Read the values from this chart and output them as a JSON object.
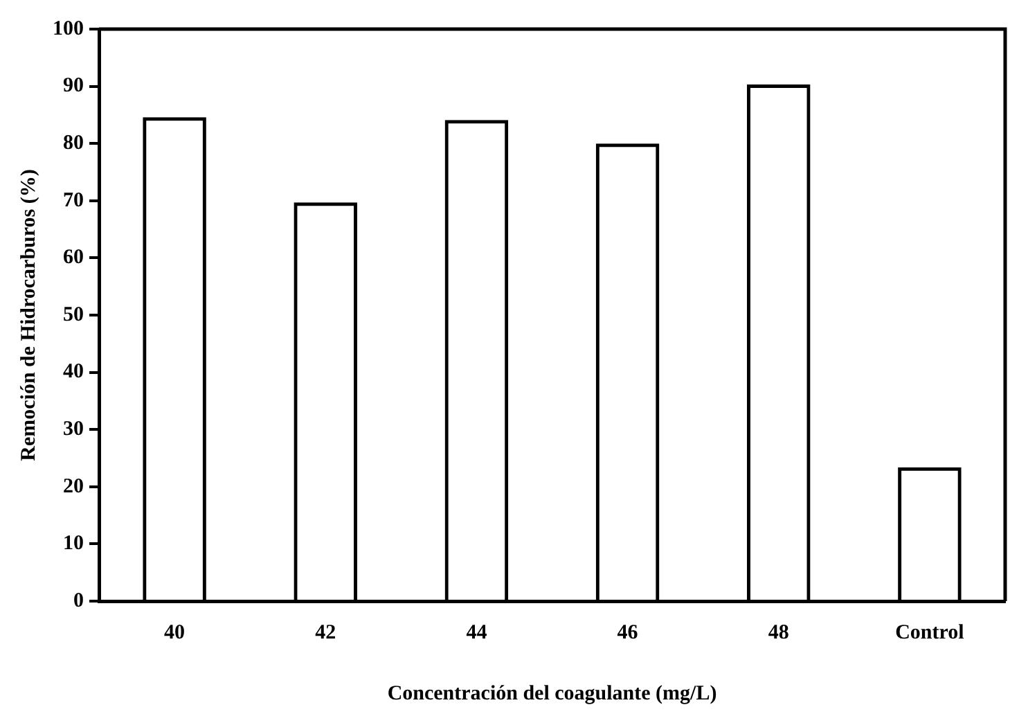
{
  "chart_data": {
    "type": "bar",
    "xlabel": "Concentración del coagulante (mg/L)",
    "ylabel": "Remoción de Hidrocarburos (%)",
    "categories": [
      "40",
      "42",
      "44",
      "46",
      "48",
      "Control"
    ],
    "values": [
      84.6,
      69.7,
      84.1,
      80.0,
      90.3,
      23.4
    ],
    "color": "#000000",
    "ylim": [
      0,
      100
    ],
    "yticks": [
      0,
      10,
      20,
      30,
      40,
      50,
      60,
      70,
      80,
      90,
      100
    ],
    "grid": false,
    "legend": false
  }
}
